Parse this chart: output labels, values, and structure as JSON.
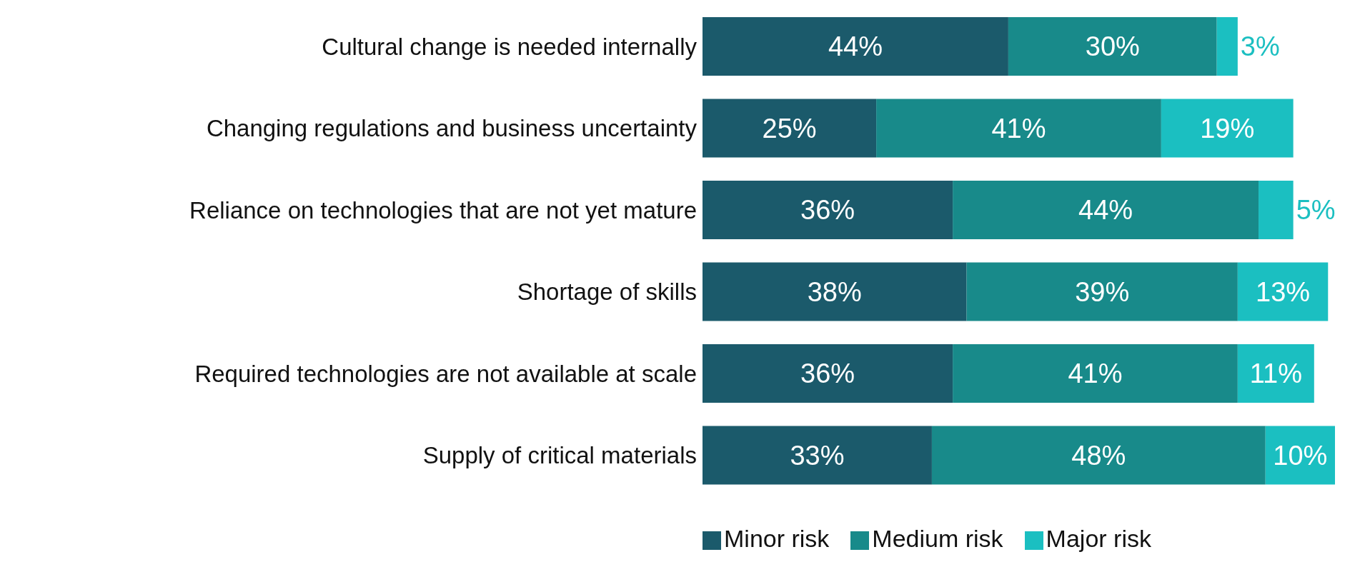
{
  "chart_data": {
    "type": "bar",
    "orientation": "horizontal",
    "stacked": true,
    "legend": "bottom",
    "grid": false,
    "categories": [
      "Cultural change is needed internally",
      "Changing regulations and business uncertainty",
      "Reliance on technologies that are not yet mature",
      "Shortage of skills",
      "Required technologies are not available at scale",
      "Supply of critical materials"
    ],
    "series": [
      {
        "name": "Minor risk",
        "color": "#1b5a6b",
        "values": [
          44,
          25,
          36,
          38,
          36,
          33
        ],
        "value_labels": [
          "44%",
          "25%",
          "36%",
          "38%",
          "36%",
          "33%"
        ]
      },
      {
        "name": "Medium risk",
        "color": "#188a8a",
        "values": [
          30,
          41,
          44,
          39,
          41,
          48
        ],
        "value_labels": [
          "30%",
          "41%",
          "44%",
          "39%",
          "41%",
          "48%"
        ]
      },
      {
        "name": "Major risk",
        "color": "#1bbfc1",
        "values": [
          3,
          19,
          5,
          13,
          11,
          10
        ],
        "value_labels": [
          "3%",
          "19%",
          "5%",
          "13%",
          "11%",
          "10%"
        ]
      }
    ]
  }
}
